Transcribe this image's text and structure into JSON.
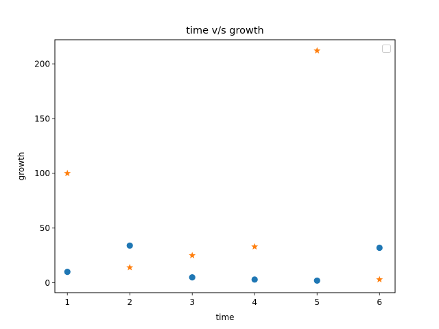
{
  "chart_data": {
    "type": "scatter",
    "title": "time v/s growth",
    "xlabel": "time",
    "ylabel": "growth",
    "xlim": [
      0.8,
      6.25
    ],
    "ylim": [
      -9,
      222
    ],
    "xticks": [
      1,
      2,
      3,
      4,
      5,
      6
    ],
    "yticks": [
      0,
      50,
      100,
      150,
      200
    ],
    "grid": false,
    "legend": {
      "position": "upper right",
      "entries": []
    },
    "series": [
      {
        "marker": "circle",
        "color": "#1f77b4",
        "x": [
          1,
          2,
          3,
          4,
          5,
          6
        ],
        "y": [
          10,
          34,
          5,
          3,
          2,
          32
        ]
      },
      {
        "marker": "star",
        "color": "#ff7f0e",
        "x": [
          1,
          2,
          3,
          4,
          5,
          6
        ],
        "y": [
          100,
          14,
          25,
          33,
          212,
          3
        ]
      }
    ]
  }
}
